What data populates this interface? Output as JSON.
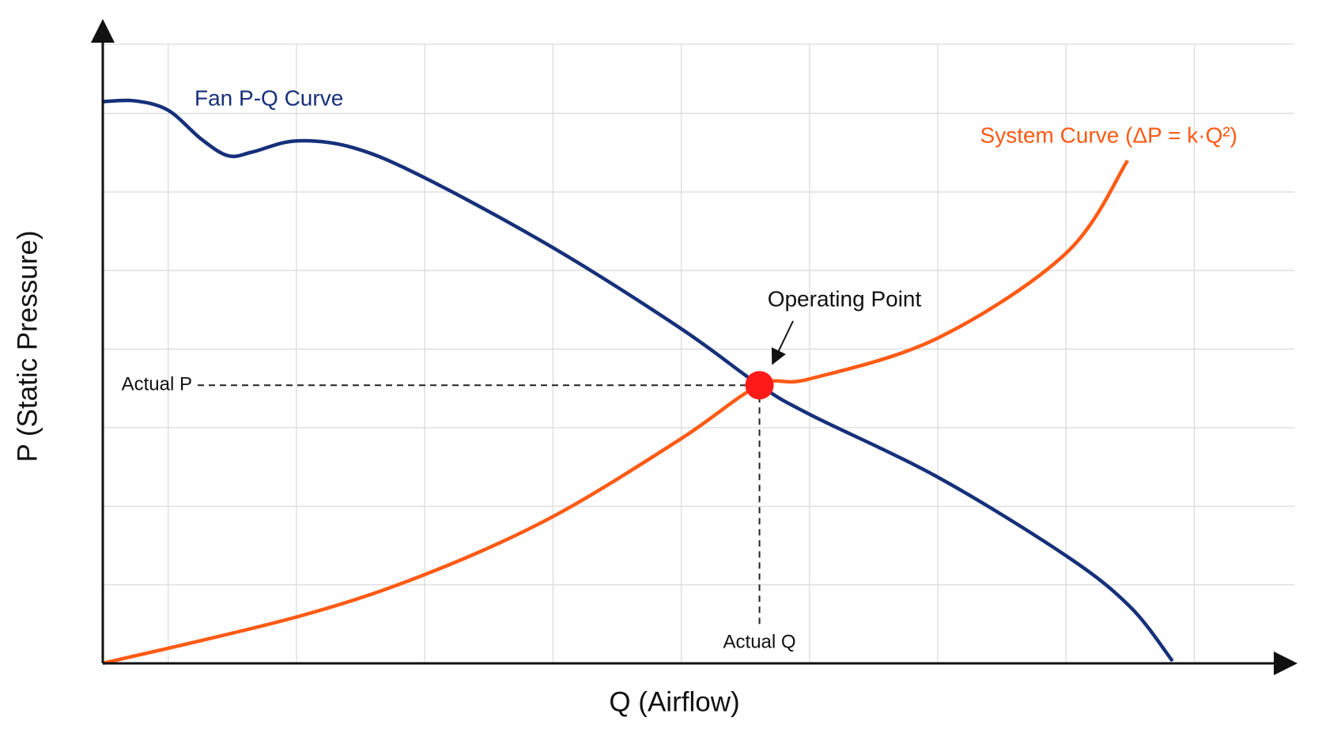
{
  "chart_data": {
    "type": "line",
    "x_label": "Q (Airflow)",
    "y_label": "P (Static Pressure)",
    "xlim": [
      -0.51,
      8.78
    ],
    "ylim": [
      0,
      7.88
    ],
    "xticks": [
      0,
      1,
      2,
      3,
      4,
      5,
      6,
      7,
      8
    ],
    "yticks": [
      1,
      2,
      3,
      4,
      5,
      6,
      7
    ],
    "grid": true,
    "series": [
      {
        "name": "Fan P-Q Curve",
        "color": "#16307a",
        "x": [
          -0.51,
          -0.26,
          0,
          0.26,
          0.47,
          0.66,
          1.0,
          1.45,
          2.0,
          2.99,
          3.99,
          4.61,
          5.0,
          6.0,
          7.0,
          7.5,
          7.83
        ],
        "values": [
          7.15,
          7.16,
          7.04,
          6.67,
          6.46,
          6.51,
          6.65,
          6.56,
          6.18,
          5.3,
          4.27,
          3.54,
          3.17,
          2.37,
          1.37,
          0.72,
          0.03
        ]
      },
      {
        "name": "System Curve (ΔP = k·Q²)",
        "color": "#ff5a14",
        "x": [
          -0.51,
          1.0,
          2.0,
          2.99,
          3.99,
          4.61,
          5.0,
          6.0,
          7.0,
          7.48
        ],
        "values": [
          0,
          0.59,
          1.13,
          1.86,
          2.85,
          3.54,
          3.62,
          4.14,
          5.22,
          6.4
        ]
      }
    ],
    "operating_point": {
      "label": "Operating Point",
      "x": 4.61,
      "y": 3.54,
      "color": "#ff1a1a",
      "x_annotation": "Actual Q",
      "y_annotation": "Actual P"
    }
  }
}
